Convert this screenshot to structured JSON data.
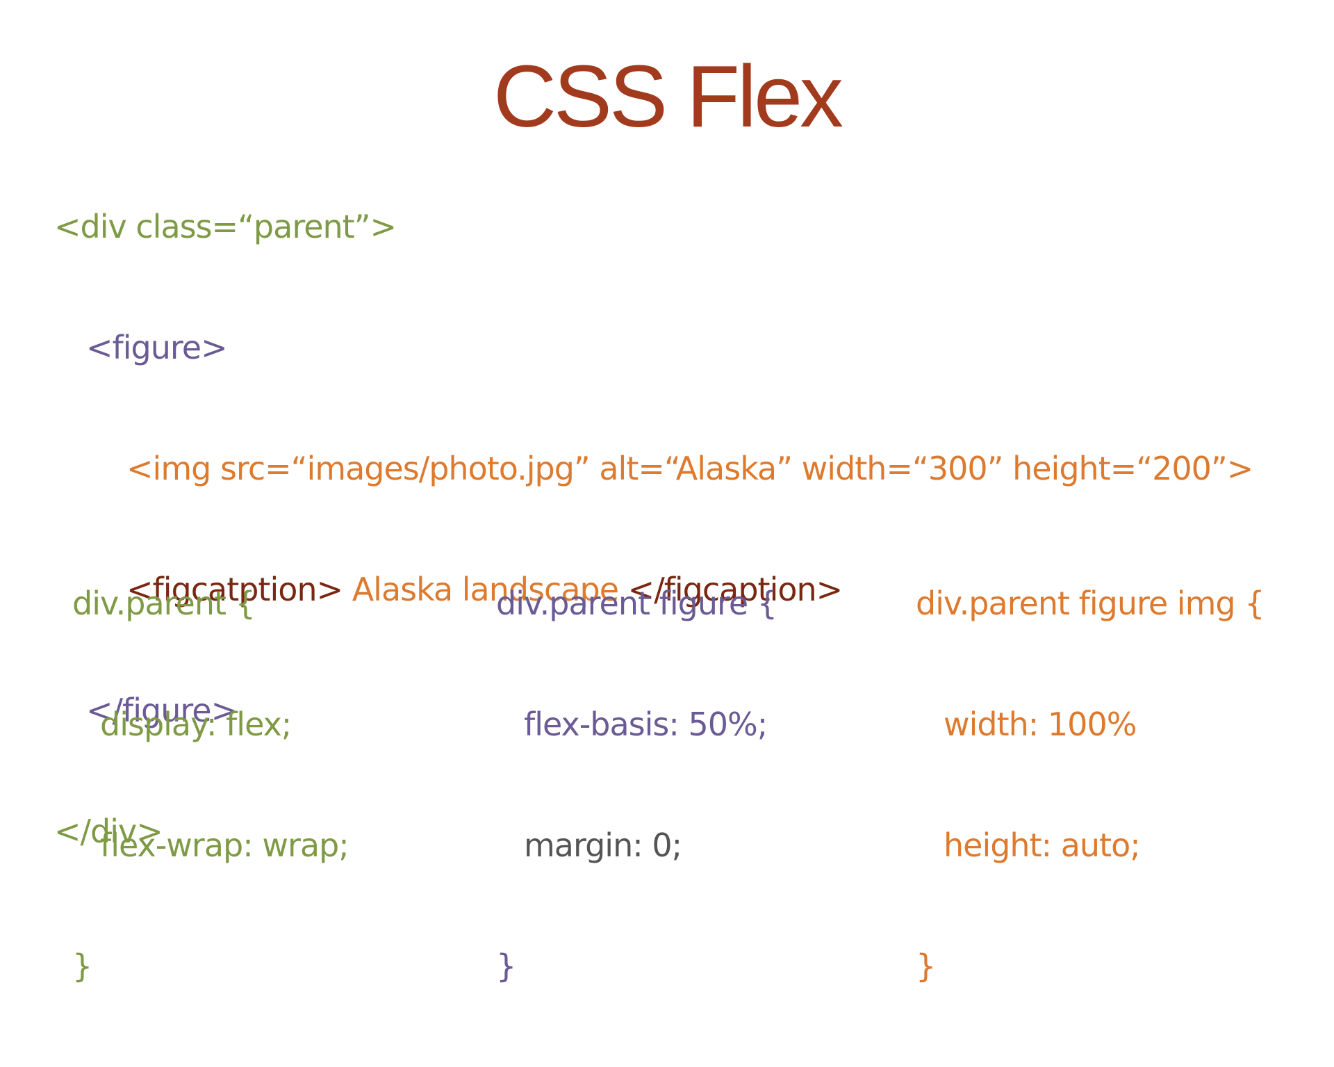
{
  "slide": {
    "title": "CSS Flex",
    "html_code": {
      "line1": "<div class=“parent”>",
      "line2": "<figure>",
      "line3": "<img src=“images/photo.jpg” alt=“Alaska” width=“300” height=“200”>",
      "line4_open": "<figcatption>",
      "line4_text": " Alaska landscape ",
      "line4_close": "</figcaption>",
      "line5": "</figure>",
      "line6": "</div>"
    },
    "css_blocks": [
      {
        "selector": "div.parent {",
        "declarations": [
          "display: flex;",
          "flex-wrap: wrap;"
        ],
        "closing": "}"
      },
      {
        "selector": "div.parent figure {",
        "declarations": [
          "flex-basis: 50%;",
          "margin: 0;"
        ],
        "closing": "}"
      },
      {
        "selector": "div.parent figure img {",
        "declarations": [
          "width: 100%",
          "height: auto;"
        ],
        "closing": "}"
      }
    ],
    "colors": {
      "title": "#a23a1d",
      "green": "#7f9a45",
      "purple": "#6b5b95",
      "orange": "#de7a2e",
      "dark_red": "#7a2712",
      "gray": "#545454"
    }
  }
}
